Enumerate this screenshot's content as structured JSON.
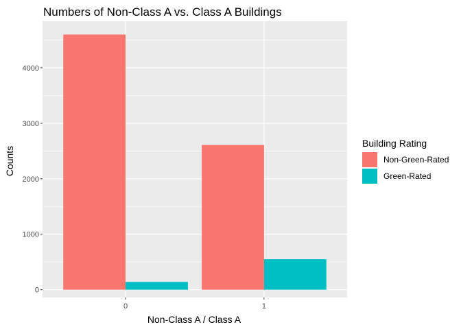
{
  "chart_data": {
    "type": "bar",
    "title": "Numbers of Non-Class A vs. Class A Buildings",
    "xlabel": "Non-Class A / Class A",
    "ylabel": "Counts",
    "categories": [
      "0",
      "1"
    ],
    "series": [
      {
        "name": "Non-Green-Rated",
        "color": "#F8766D",
        "values": [
          4600,
          2610
        ]
      },
      {
        "name": "Green-Rated",
        "color": "#00BFC4",
        "values": [
          140,
          550
        ]
      }
    ],
    "ylim": [
      -140,
      4840
    ],
    "yticks": [
      0,
      1000,
      2000,
      3000,
      4000
    ],
    "legend_title": "Building Rating",
    "legend_position": "right",
    "grid": true,
    "panel_color": "#EBEBEB",
    "grid_color": "#FFFFFF"
  }
}
